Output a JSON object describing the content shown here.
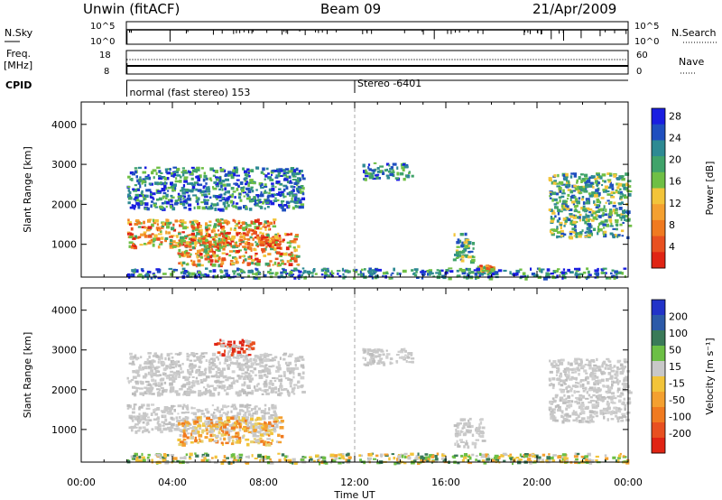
{
  "header": {
    "station": "Unwin (fitACF)",
    "beam": "Beam 09",
    "date": "21/Apr/2009"
  },
  "strip": {
    "nsky_label": "N.Sky",
    "nsky_ticks": [
      "10^5",
      "10^0"
    ],
    "nsearch_label": "N.Search",
    "nsearch_ticks": [
      "10^5",
      "10^0"
    ],
    "freq_label": "Freq.",
    "freq_unit": "[MHz]",
    "freq_ticks": [
      "18",
      "8"
    ],
    "nave_label": "Nave",
    "nave_ticks": [
      "60",
      "0"
    ],
    "cpid_label": "CPID",
    "modes": [
      {
        "start_hour": 2.0,
        "label": "normal (fast stereo) 153"
      },
      {
        "start_hour": 12.0,
        "label": "Stereo -6401"
      }
    ]
  },
  "chart_data": [
    {
      "type": "heatmap",
      "name": "power-panel",
      "xlabel": "",
      "ylabel": "Slant Range [km]",
      "xlim": [
        0,
        24
      ],
      "ylim": [
        180,
        4560
      ],
      "y_ticks": [
        "1000",
        "2000",
        "3000",
        "4000"
      ],
      "y_tick_values": [
        1000,
        2000,
        3000,
        4000
      ],
      "colorbar": {
        "label": "Power [dB]",
        "ticks": [
          "4",
          "8",
          "12",
          "16",
          "20",
          "24",
          "28"
        ],
        "colors": [
          "#1a1ee0",
          "#1f4fbf",
          "#2e8a93",
          "#40a36a",
          "#6fbf45",
          "#f2c43a",
          "#f4a030",
          "#f07a20",
          "#e85020",
          "#e02414"
        ]
      },
      "echo_regions": [
        {
          "t0": 2.0,
          "t1": 8.5,
          "r0": 950,
          "r1": 1650,
          "level": "high",
          "note": "main band"
        },
        {
          "t0": 2.0,
          "t1": 9.7,
          "r0": 1900,
          "r1": 2950,
          "level": "low"
        },
        {
          "t0": 4.2,
          "t1": 9.5,
          "r0": 500,
          "r1": 1300,
          "level": "high"
        },
        {
          "t0": 12.3,
          "t1": 14.5,
          "r0": 2650,
          "r1": 3050,
          "level": "low"
        },
        {
          "t0": 16.3,
          "t1": 17.2,
          "r0": 600,
          "r1": 1300,
          "level": "mid"
        },
        {
          "t0": 17.3,
          "t1": 18.0,
          "r0": 300,
          "r1": 500,
          "level": "high"
        },
        {
          "t0": 20.5,
          "t1": 24.0,
          "r0": 1200,
          "r1": 2800,
          "level": "mid"
        },
        {
          "t0": 2.0,
          "t1": 24.0,
          "r0": 180,
          "r1": 420,
          "level": "low",
          "note": "ground scatter near range"
        }
      ]
    },
    {
      "type": "heatmap",
      "name": "velocity-panel",
      "xlabel": "Time UT",
      "ylabel": "Slant Range [km]",
      "xlim": [
        0,
        24
      ],
      "ylim": [
        180,
        4560
      ],
      "x_ticks": [
        "00:00",
        "04:00",
        "08:00",
        "12:00",
        "16:00",
        "20:00",
        "00:00"
      ],
      "x_tick_values": [
        0,
        4,
        8,
        12,
        16,
        20,
        24
      ],
      "y_ticks": [
        "1000",
        "2000",
        "3000",
        "4000"
      ],
      "y_tick_values": [
        1000,
        2000,
        3000,
        4000
      ],
      "colorbar": {
        "label": "Velocity [m s⁻¹]",
        "ticks": [
          "200",
          "100",
          "50",
          "15",
          "-15",
          "-50",
          "-100",
          "-200"
        ],
        "colors": [
          "#2233c8",
          "#2c5aa8",
          "#3a7a58",
          "#6cbf45",
          "#c8c8c8",
          "#f2c43a",
          "#f4a030",
          "#f07a20",
          "#e85020",
          "#e02414"
        ]
      },
      "echo_regions": [
        {
          "t0": 2.0,
          "t1": 8.5,
          "r0": 950,
          "r1": 1650,
          "level": "ground"
        },
        {
          "t0": 2.0,
          "t1": 9.7,
          "r0": 1900,
          "r1": 2950,
          "level": "ground"
        },
        {
          "t0": 4.2,
          "t1": 8.8,
          "r0": 650,
          "r1": 1350,
          "level": "neg"
        },
        {
          "t0": 5.8,
          "t1": 7.5,
          "r0": 2900,
          "r1": 3300,
          "level": "neg_strong"
        },
        {
          "t0": 12.3,
          "t1": 14.5,
          "r0": 2650,
          "r1": 3050,
          "level": "ground"
        },
        {
          "t0": 16.3,
          "t1": 17.6,
          "r0": 600,
          "r1": 1300,
          "level": "ground"
        },
        {
          "t0": 20.5,
          "t1": 24.0,
          "r0": 1200,
          "r1": 2800,
          "level": "ground"
        },
        {
          "t0": 2.0,
          "t1": 24.0,
          "r0": 180,
          "r1": 420,
          "level": "mixed"
        }
      ]
    }
  ],
  "colors": {
    "axis": "#000000",
    "midline": "#aaaaaa"
  }
}
